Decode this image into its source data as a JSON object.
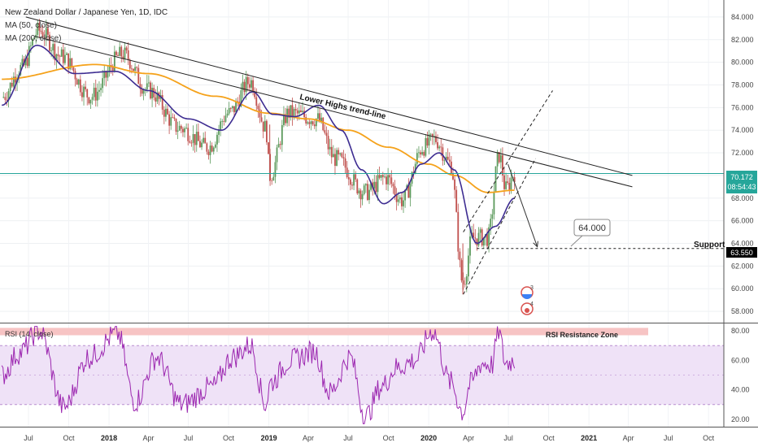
{
  "header": {
    "title": "New Zealand Dollar / Japanese Yen, 1D, IDC",
    "ma50_label": "MA (50, close)",
    "ma200_label": "MA (200, close)"
  },
  "colors": {
    "ma50": "#3d2c91",
    "ma200": "#f5a21b",
    "candle_up": "#5c9a5c",
    "candle_down": "#c0504d",
    "rsi": "#9c27b0",
    "rsi_band": "#efe2f7",
    "rsi_resistance_zone": "#f7c4c4",
    "price_tag": "#26a69a",
    "support_tag": "#000000"
  },
  "annotations": {
    "trendline_label": "Lower Highs trend-line",
    "target_label": "64.000",
    "support_label": "Support",
    "rsi_zone_label": "RSI Resistance Zone",
    "event_3": "3",
    "event_4": "4"
  },
  "price_tags": {
    "last_price": "70.172",
    "countdown": "08:54:43",
    "support_price": "63.550"
  },
  "rsi_panel": {
    "label": "RSI (14, close)"
  },
  "chart_data": [
    {
      "type": "candlestick",
      "title": "New Zealand Dollar / Japanese Yen, 1D, IDC",
      "x_ticks": [
        "Jul",
        "Oct",
        "2018",
        "Apr",
        "Jul",
        "Oct",
        "2019",
        "Apr",
        "Jul",
        "Oct",
        "2020",
        "Apr",
        "Jul",
        "Oct",
        "2021",
        "Apr",
        "Jul",
        "Oct"
      ],
      "y_ticks": [
        58.0,
        60.0,
        62.0,
        64.0,
        66.0,
        68.0,
        70.0,
        72.0,
        74.0,
        76.0,
        78.0,
        80.0,
        82.0,
        84.0
      ],
      "ylim": [
        57,
        85.5
      ],
      "xlim": [
        "2017-04-27",
        "2021-11-05"
      ],
      "series": [
        {
          "name": "price",
          "x": [
            "2017-05-01",
            "2017-06-15",
            "2017-07-25",
            "2017-09-15",
            "2017-11-20",
            "2018-02-01",
            "2018-04-01",
            "2018-06-10",
            "2018-08-15",
            "2018-10-01",
            "2018-11-20",
            "2018-12-25",
            "2019-01-03",
            "2019-02-15",
            "2019-04-20",
            "2019-06-01",
            "2019-08-10",
            "2019-09-25",
            "2019-11-01",
            "2019-12-20",
            "2020-01-15",
            "2020-02-20",
            "2020-03-19",
            "2020-04-10",
            "2020-05-15",
            "2020-06-10",
            "2020-06-25",
            "2020-07-15"
          ],
          "values": [
            76.9,
            79.5,
            82.8,
            80.5,
            77.0,
            80.7,
            77.5,
            74.2,
            72.5,
            75.5,
            78.3,
            74.2,
            70.0,
            75.5,
            75.0,
            71.5,
            68.5,
            69.8,
            67.8,
            72.5,
            73.2,
            71.0,
            60.5,
            64.5,
            64.5,
            71.8,
            68.8,
            70.2
          ]
        },
        {
          "name": "MA (50, close)",
          "x": [
            "2017-05-01",
            "2017-07-20",
            "2017-10-15",
            "2018-01-15",
            "2018-04-01",
            "2018-07-01",
            "2018-09-15",
            "2018-11-25",
            "2019-01-10",
            "2019-03-01",
            "2019-04-25",
            "2019-06-15",
            "2019-08-01",
            "2019-09-20",
            "2019-11-01",
            "2019-12-15",
            "2020-01-25",
            "2020-02-28",
            "2020-04-20",
            "2020-06-01",
            "2020-07-15"
          ],
          "values": [
            76.2,
            81.5,
            79.0,
            79.2,
            77.5,
            75.0,
            74.0,
            77.4,
            75.4,
            75.2,
            76.2,
            74.0,
            70.5,
            67.5,
            68.5,
            71.0,
            72.0,
            70.5,
            64.0,
            65.5,
            68.0
          ]
        },
        {
          "name": "MA (200, close)",
          "x": [
            "2017-05-01",
            "2017-12-01",
            "2018-04-01",
            "2018-09-01",
            "2019-01-01",
            "2019-04-01",
            "2019-07-01",
            "2019-10-01",
            "2020-01-01",
            "2020-03-01",
            "2020-05-15",
            "2020-07-15"
          ],
          "values": [
            78.5,
            79.8,
            79.0,
            77.0,
            75.5,
            75.0,
            74.0,
            72.5,
            71.0,
            70.0,
            68.5,
            68.7
          ]
        }
      ],
      "trendlines": [
        {
          "name": "upper",
          "x": [
            "2017-06-25",
            "2021-04-10"
          ],
          "values": [
            84.0,
            70.0
          ]
        },
        {
          "name": "lower",
          "x": [
            "2017-07-15",
            "2021-04-10"
          ],
          "values": [
            82.3,
            69.0
          ]
        },
        {
          "name": "channel-upper",
          "x": [
            "2020-03-20",
            "2020-10-10"
          ],
          "values": [
            65.0,
            77.5
          ]
        },
        {
          "name": "channel-lower",
          "x": [
            "2020-03-20",
            "2020-09-01"
          ],
          "values": [
            59.5,
            71.5
          ]
        }
      ],
      "projection": {
        "x": [
          "2020-06-30",
          "2020-09-05"
        ],
        "values": [
          71.0,
          63.7
        ]
      },
      "support": {
        "x_start": "2020-04-20",
        "x_end": "2021-11-05",
        "value": 63.55
      },
      "last_price": 70.172,
      "target": 64.0
    },
    {
      "type": "line",
      "title": "RSI (14, close)",
      "y_ticks": [
        20.0,
        40.0,
        60.0,
        80.0
      ],
      "ylim": [
        15,
        85
      ],
      "band": [
        30,
        70
      ],
      "resistance_zone": [
        77,
        82
      ],
      "series": [
        {
          "name": "RSI (14, close)",
          "x": [
            "2017-05-01",
            "2017-06-10",
            "2017-07-25",
            "2017-09-20",
            "2017-11-15",
            "2018-01-20",
            "2018-03-01",
            "2018-04-20",
            "2018-06-15",
            "2018-08-25",
            "2018-10-10",
            "2018-11-20",
            "2018-12-25",
            "2019-01-05",
            "2019-02-20",
            "2019-04-15",
            "2019-05-20",
            "2019-07-05",
            "2019-08-10",
            "2019-09-15",
            "2019-10-20",
            "2019-12-01",
            "2020-01-10",
            "2020-02-20",
            "2020-03-19",
            "2020-04-05",
            "2020-05-01",
            "2020-05-25",
            "2020-06-08",
            "2020-06-25",
            "2020-07-15"
          ],
          "values": [
            50,
            65,
            80,
            28,
            62,
            78,
            32,
            62,
            30,
            42,
            62,
            70,
            30,
            45,
            60,
            66,
            38,
            62,
            22,
            42,
            55,
            60,
            80,
            45,
            25,
            44,
            58,
            57,
            80,
            58,
            60
          ]
        }
      ]
    }
  ]
}
